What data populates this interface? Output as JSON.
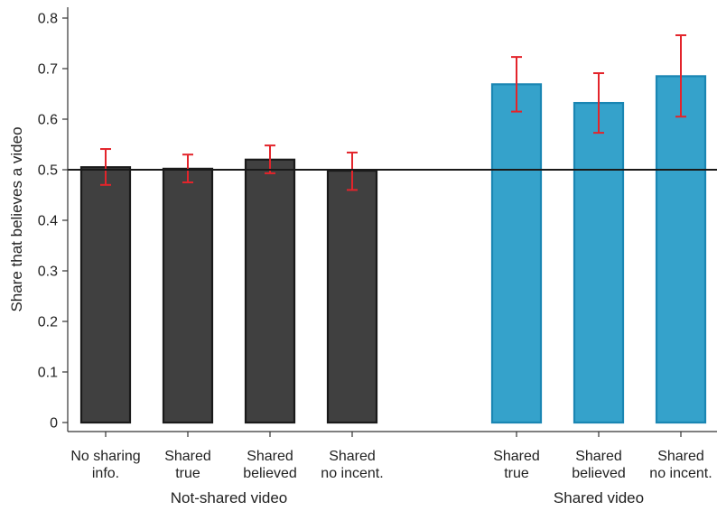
{
  "chart_data": {
    "type": "bar",
    "title": "",
    "xlabel": "",
    "ylabel": "Share that believes a video",
    "ylim": [
      0,
      0.8
    ],
    "yticks": [
      0,
      0.1,
      0.2,
      0.3,
      0.4,
      0.5,
      0.6,
      0.7,
      0.8
    ],
    "ytick_labels": [
      "0",
      "0.1",
      "0.2",
      "0.3",
      "0.4",
      "0.5",
      "0.6",
      "0.7",
      "0.8"
    ],
    "reference_line": 0.5,
    "grid": false,
    "groups": [
      {
        "label": "Not-shared video",
        "color": "#404040",
        "edge_color": "#1a1a1a",
        "bars": [
          {
            "label": [
              "No sharing",
              "info."
            ],
            "value": 0.505,
            "ci": [
              0.47,
              0.541
            ]
          },
          {
            "label": [
              "Shared",
              "true"
            ],
            "value": 0.502,
            "ci": [
              0.475,
              0.53
            ]
          },
          {
            "label": [
              "Shared",
              "believed"
            ],
            "value": 0.52,
            "ci": [
              0.493,
              0.548
            ]
          },
          {
            "label": [
              "Shared",
              "no incent."
            ],
            "value": 0.498,
            "ci": [
              0.46,
              0.534
            ]
          }
        ]
      },
      {
        "label": "Shared video",
        "color": "#35a2cb",
        "edge_color": "#1a86b3",
        "bars": [
          {
            "label": [
              "Shared",
              "true"
            ],
            "value": 0.669,
            "ci": [
              0.615,
              0.723
            ]
          },
          {
            "label": [
              "Shared",
              "believed"
            ],
            "value": 0.632,
            "ci": [
              0.573,
              0.691
            ]
          },
          {
            "label": [
              "Shared",
              "no incent."
            ],
            "value": 0.685,
            "ci": [
              0.605,
              0.766
            ]
          }
        ]
      }
    ],
    "error_bar_color": "#e3242b"
  }
}
